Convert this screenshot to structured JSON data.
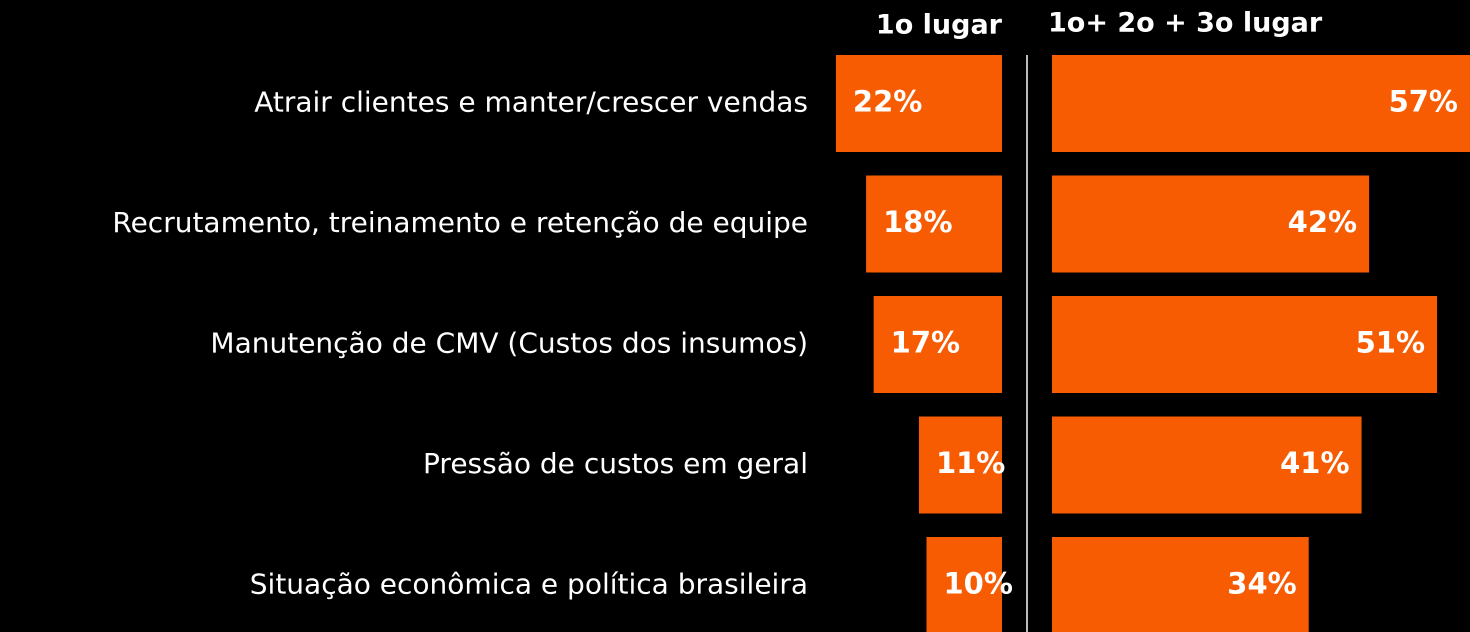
{
  "chart_data": {
    "type": "bar",
    "categories": [
      "Atrair clientes e manter/crescer vendas",
      "Recrutamento, treinamento e retenção de equipe",
      "Manutenção de CMV (Custos dos insumos)",
      "Pressão de custos em geral",
      "Situação econômica e política brasileira"
    ],
    "series": [
      {
        "name": "1o lugar",
        "color": "#f75c03",
        "values": [
          22,
          18,
          17,
          11,
          10
        ],
        "value_labels": [
          "22%",
          "18%",
          "17%",
          "11%",
          "10%"
        ]
      },
      {
        "name": "1o+ 2o + 3o lugar",
        "color": "#f75c03",
        "values": [
          57,
          42,
          51,
          41,
          34
        ],
        "value_labels": [
          "57%",
          "42%",
          "51%",
          "41%",
          "34%"
        ]
      }
    ]
  }
}
